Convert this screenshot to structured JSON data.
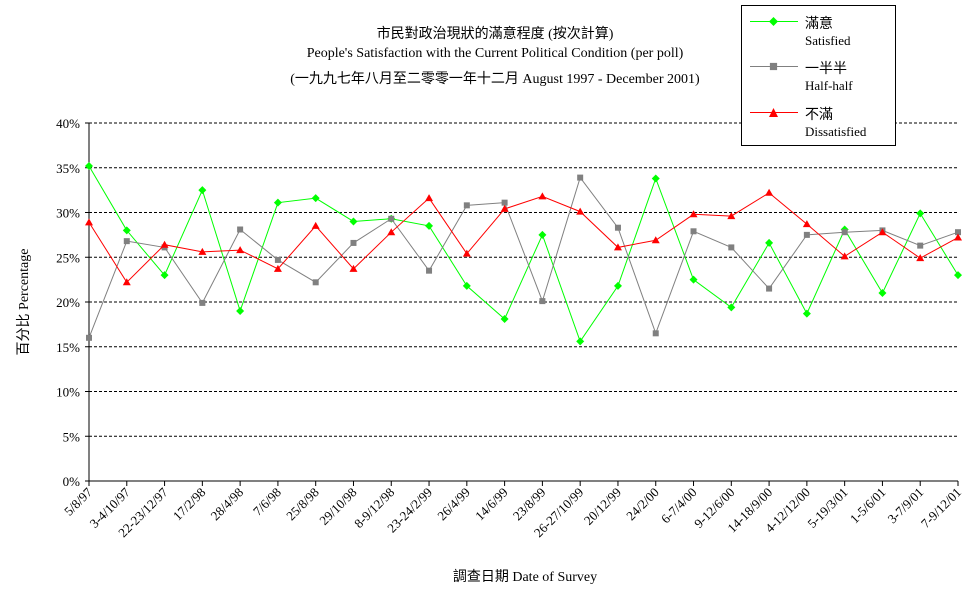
{
  "chart_data": {
    "type": "line",
    "title": "市民對政治現狀的滿意程度 (按次計算)",
    "subtitle": "People's Satisfaction with the Current Political Condition (per poll)",
    "subtitle2": "(一九九七年八月至二零零一年十二月 August 1997 - December 2001)",
    "xlabel": "調查日期 Date of Survey",
    "ylabel": "百分比 Percentage",
    "ylim": [
      0,
      40
    ],
    "yticks": [
      "0%",
      "5%",
      "10%",
      "15%",
      "20%",
      "25%",
      "30%",
      "35%",
      "40%"
    ],
    "grid": true,
    "legend_position": "top-right",
    "categories": [
      "5/8/97",
      "3-4/10/97",
      "22-23/12/97",
      "17/2/98",
      "28/4/98",
      "7/6/98",
      "25/8/98",
      "29/10/98",
      "8-9/12/98",
      "23-24/2/99",
      "26/4/99",
      "14/6/99",
      "23/8/99",
      "26-27/10/99",
      "20/12/99",
      "24/2/00",
      "6-7/4/00",
      "9-12/6/00",
      "14-18/9/00",
      "4-12/12/00",
      "5-19/3/01",
      "1-5/6/01",
      "3-7/9/01",
      "7-9/12/01"
    ],
    "series": [
      {
        "name": "滿意",
        "name_en": "Satisfied",
        "color": "#00ff00",
        "marker": "diamond",
        "values": [
          35.2,
          28.0,
          23.0,
          32.5,
          19.0,
          31.1,
          31.6,
          29.0,
          29.3,
          28.5,
          21.8,
          18.1,
          27.5,
          15.6,
          21.8,
          33.8,
          22.5,
          19.4,
          26.6,
          18.7,
          28.1,
          21.0,
          29.9,
          23.0
        ]
      },
      {
        "name": "一半半",
        "name_en": "Half-half",
        "color": "#808080",
        "marker": "square",
        "values": [
          16.0,
          26.8,
          26.1,
          19.9,
          28.1,
          24.7,
          22.2,
          26.6,
          29.3,
          23.5,
          30.8,
          31.1,
          20.1,
          33.9,
          28.3,
          16.5,
          27.9,
          26.1,
          21.5,
          27.5,
          27.8,
          28.0,
          26.3,
          27.8
        ]
      },
      {
        "name": "不滿",
        "name_en": "Dissatisfied",
        "color": "#ff0000",
        "marker": "triangle",
        "values": [
          28.9,
          22.2,
          26.4,
          25.6,
          25.8,
          23.7,
          28.5,
          23.7,
          27.8,
          31.6,
          25.4,
          30.4,
          31.8,
          30.1,
          26.1,
          26.9,
          29.8,
          29.6,
          32.2,
          28.7,
          25.1,
          27.8,
          24.9,
          27.2
        ]
      }
    ]
  }
}
